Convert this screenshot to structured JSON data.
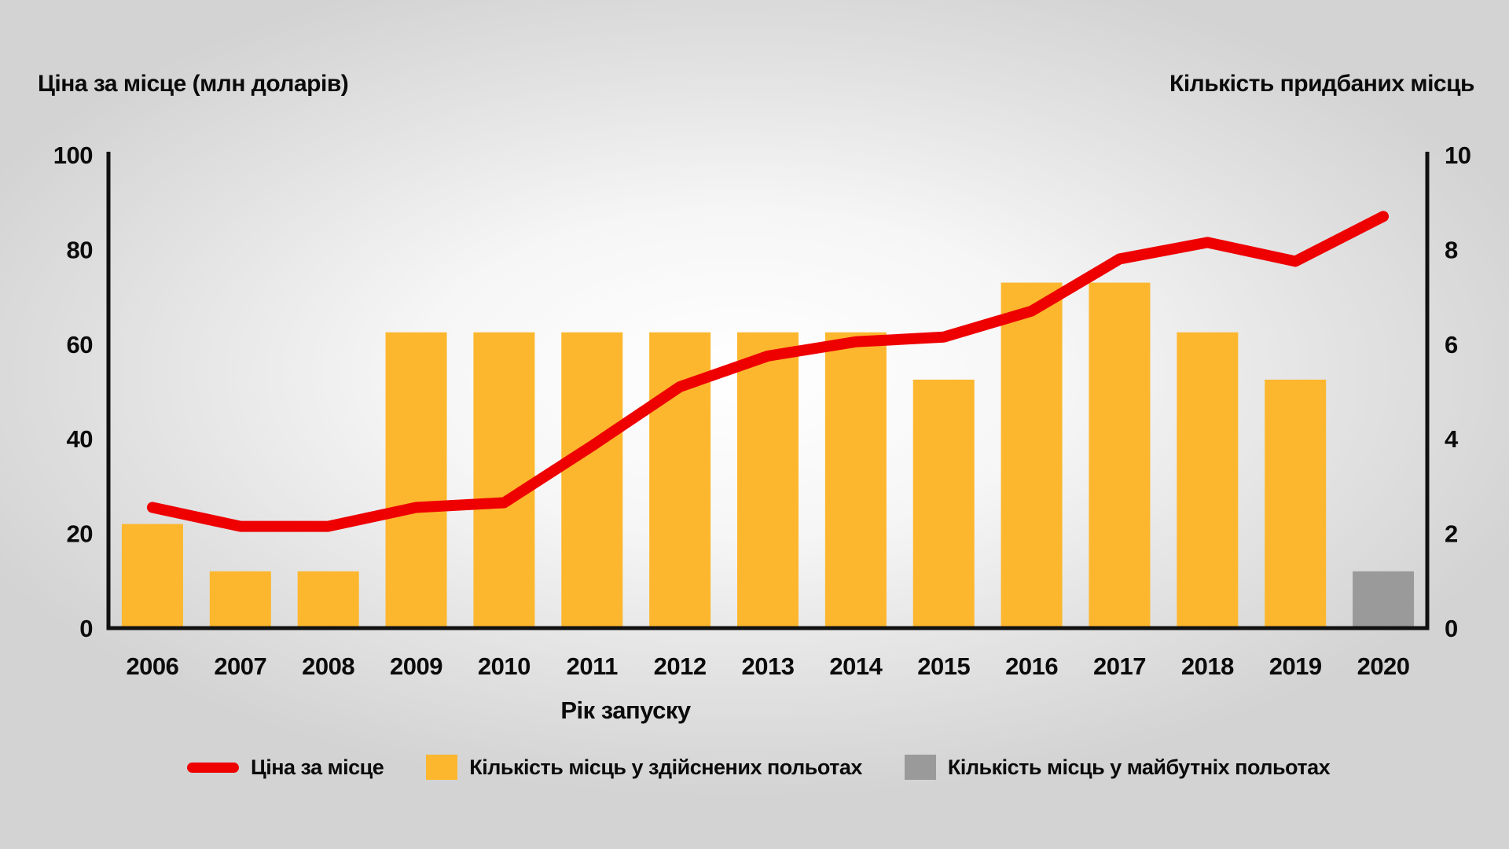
{
  "chart_data": {
    "type": "combo-bar-line",
    "title": "",
    "xlabel": "Рік запуску",
    "x_years": [
      "2006",
      "2007",
      "2008",
      "2009",
      "2010",
      "2011",
      "2012",
      "2013",
      "2014",
      "2015",
      "2016",
      "2017",
      "2018",
      "2019",
      "2020"
    ],
    "left_axis": {
      "title": "Ціна за місце (млн доларів)",
      "range": [
        0,
        100
      ],
      "ticks": [
        0,
        20,
        40,
        60,
        80,
        100
      ]
    },
    "right_axis": {
      "title": "Кількість придбаних місць",
      "range": [
        0,
        10
      ],
      "ticks": [
        0,
        2,
        4,
        6,
        8,
        10
      ]
    },
    "grid": false,
    "legend_position": "bottom",
    "axis_color": "#111111",
    "series": [
      {
        "name": "Ціна за місце",
        "type": "line",
        "axis": "left",
        "color": "#ee0000",
        "values": [
          25.5,
          21.5,
          21.5,
          25.5,
          26.5,
          38.5,
          51,
          57.5,
          60.5,
          61.5,
          67,
          78,
          81.5,
          77.5,
          87
        ]
      },
      {
        "name": "Кількість місць у здійснених польотах",
        "type": "bar",
        "axis": "right",
        "color": "#fcb72e",
        "values": [
          2.2,
          1.2,
          1.2,
          6.25,
          6.25,
          6.25,
          6.25,
          6.25,
          6.25,
          5.25,
          7.3,
          7.3,
          6.25,
          5.25,
          null
        ]
      },
      {
        "name": "Кількість місць у майбутніх польотах",
        "type": "bar",
        "axis": "right",
        "color": "#9a9a9a",
        "values": [
          null,
          null,
          null,
          null,
          null,
          null,
          null,
          null,
          null,
          null,
          null,
          null,
          null,
          null,
          1.2
        ]
      }
    ]
  }
}
